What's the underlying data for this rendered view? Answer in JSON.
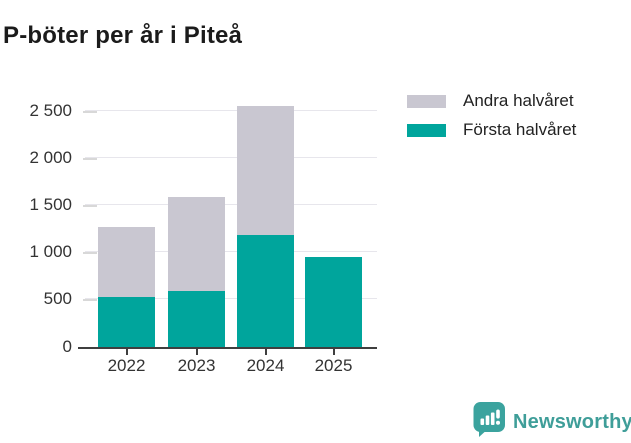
{
  "title": "P-böter per år i Piteå",
  "chart_data": {
    "type": "bar",
    "stacked": true,
    "title": "P-böter per år i Piteå",
    "categories": [
      "2022",
      "2023",
      "2024",
      "2025"
    ],
    "series": [
      {
        "name": "Första halvåret",
        "color": "#00a59c",
        "values": [
          530,
          595,
          1190,
          955
        ]
      },
      {
        "name": "Andra halvåret",
        "color": "#c9c7d1",
        "values": [
          745,
          995,
          1365,
          0
        ]
      }
    ],
    "xlabel": "",
    "ylabel": "",
    "ylim": [
      0,
      2742
    ],
    "yticks": [
      0,
      500,
      1000,
      1500,
      2000,
      2500
    ],
    "ytick_labels": [
      "0",
      "500",
      "1 000",
      "1 500",
      "2 000",
      "2 500"
    ],
    "grid": true,
    "legend_position": "top-right"
  },
  "legend_items": [
    {
      "label": "Andra halvåret",
      "series_index": 1
    },
    {
      "label": "Första halvåret",
      "series_index": 0
    }
  ],
  "branding": {
    "name": "Newsworthy",
    "logo_icon": "bar-chart-speech-bubble-icon",
    "text_color": "#3f9e99",
    "icon_color": "#3ba39e"
  }
}
